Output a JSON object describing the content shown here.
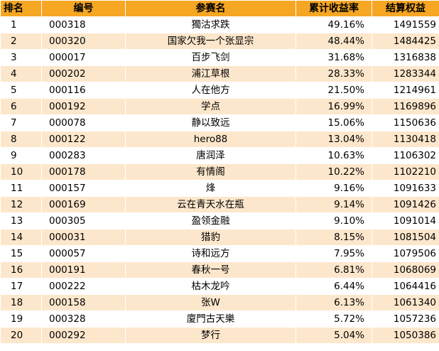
{
  "table": {
    "headers": {
      "rank": "排名",
      "code": "编号",
      "name": "参赛名",
      "rate": "累计收益率",
      "equity": "结算权益"
    },
    "rows": [
      {
        "rank": "1",
        "code": "000318",
        "name": "獨沽求跌",
        "rate": "49.16%",
        "equity": "1491559"
      },
      {
        "rank": "2",
        "code": "000320",
        "name": "国家欠我一个张显宗",
        "rate": "48.44%",
        "equity": "1484425"
      },
      {
        "rank": "3",
        "code": "000017",
        "name": "百步飞剑",
        "rate": "31.68%",
        "equity": "1316838"
      },
      {
        "rank": "4",
        "code": "000202",
        "name": "浦江草根",
        "rate": "28.33%",
        "equity": "1283344"
      },
      {
        "rank": "5",
        "code": "000116",
        "name": "人在他方",
        "rate": "21.50%",
        "equity": "1214961"
      },
      {
        "rank": "6",
        "code": "000192",
        "name": "学点",
        "rate": "16.99%",
        "equity": "1169896"
      },
      {
        "rank": "7",
        "code": "000078",
        "name": "静以致远",
        "rate": "15.06%",
        "equity": "1150636"
      },
      {
        "rank": "8",
        "code": "000122",
        "name": "hero88",
        "rate": "13.04%",
        "equity": "1130418"
      },
      {
        "rank": "9",
        "code": "000283",
        "name": "唐润泽",
        "rate": "10.63%",
        "equity": "1106302"
      },
      {
        "rank": "10",
        "code": "000178",
        "name": "有情阁",
        "rate": "10.22%",
        "equity": "1102210"
      },
      {
        "rank": "11",
        "code": "000157",
        "name": "烽",
        "rate": "9.16%",
        "equity": "1091633"
      },
      {
        "rank": "12",
        "code": "000169",
        "name": "云在青天水在瓶",
        "rate": "9.14%",
        "equity": "1091426"
      },
      {
        "rank": "13",
        "code": "000305",
        "name": "盈领金融",
        "rate": "9.10%",
        "equity": "1091014"
      },
      {
        "rank": "14",
        "code": "000031",
        "name": "猎豹",
        "rate": "8.15%",
        "equity": "1081504"
      },
      {
        "rank": "15",
        "code": "000057",
        "name": "诗和远方",
        "rate": "7.95%",
        "equity": "1079506"
      },
      {
        "rank": "16",
        "code": "000191",
        "name": "春秋一号",
        "rate": "6.81%",
        "equity": "1068069"
      },
      {
        "rank": "17",
        "code": "000222",
        "name": "枯木龙吟",
        "rate": "6.44%",
        "equity": "1064416"
      },
      {
        "rank": "18",
        "code": "000158",
        "name": "张W",
        "rate": "6.13%",
        "equity": "1061340"
      },
      {
        "rank": "19",
        "code": "000328",
        "name": "廈門古天樂",
        "rate": "5.72%",
        "equity": "1057236"
      },
      {
        "rank": "20",
        "code": "000292",
        "name": "梦行",
        "rate": "5.04%",
        "equity": "1050386"
      }
    ]
  },
  "colors": {
    "header_bg": "#f5a623",
    "stripe_bg": "#fde7cc"
  }
}
